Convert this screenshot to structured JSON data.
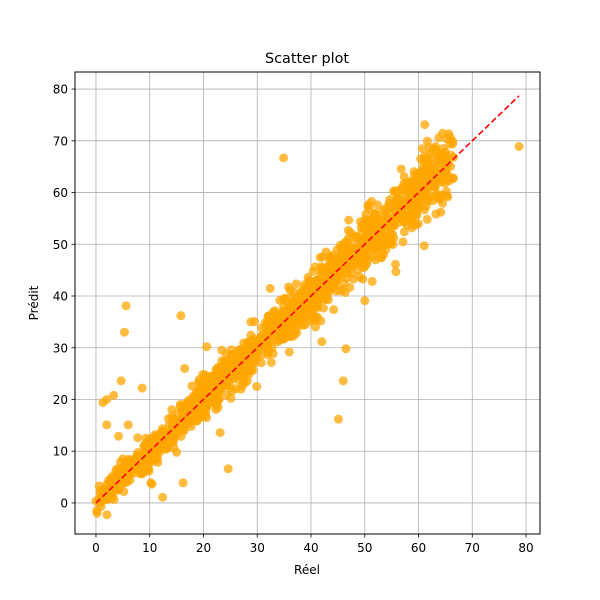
{
  "chart_data": {
    "type": "scatter",
    "title": "Scatter plot",
    "xlabel": "Réel",
    "ylabel": "Prédit",
    "xlim": [
      -3.9,
      82.6
    ],
    "ylim": [
      -6.0,
      83.3
    ],
    "xticks": [
      0,
      10,
      20,
      30,
      40,
      50,
      60,
      70,
      80
    ],
    "yticks": [
      0,
      10,
      20,
      30,
      40,
      50,
      60,
      70,
      80
    ],
    "grid": true,
    "point_color": "#FFA500",
    "point_alpha": 0.75,
    "reference_line": {
      "from": [
        0,
        0
      ],
      "to": [
        78.7,
        78.7
      ],
      "color": "#FF0000",
      "style": "dashed"
    },
    "outliers": [
      [
        1.3,
        19.4
      ],
      [
        2.0,
        15.1
      ],
      [
        2.0,
        20.0
      ],
      [
        3.3,
        20.8
      ],
      [
        4.7,
        23.6
      ],
      [
        5.3,
        33.0
      ],
      [
        5.6,
        38.1
      ],
      [
        6.0,
        15.1
      ],
      [
        8.6,
        22.2
      ],
      [
        15.8,
        36.2
      ],
      [
        16.5,
        26.0
      ],
      [
        19.0,
        18.0
      ],
      [
        19.9,
        18.0
      ],
      [
        20.6,
        30.2
      ],
      [
        24.6,
        6.6
      ],
      [
        34.9,
        66.7
      ],
      [
        45.1,
        16.2
      ],
      [
        46.0,
        23.6
      ],
      [
        46.5,
        29.8
      ],
      [
        55.8,
        44.7
      ],
      [
        78.7,
        68.9
      ],
      [
        12.4,
        1.1
      ],
      [
        16.2,
        3.9
      ],
      [
        4.2,
        12.9
      ],
      [
        10.2,
        3.9
      ],
      [
        39.0,
        34.5
      ],
      [
        50.0,
        39.1
      ],
      [
        23.1,
        13.6
      ],
      [
        29.9,
        22.5
      ]
    ],
    "cluster": {
      "count": 1400,
      "x_range": [
        0,
        66
      ],
      "noise_sd": 2.3,
      "seed": 12345
    }
  }
}
